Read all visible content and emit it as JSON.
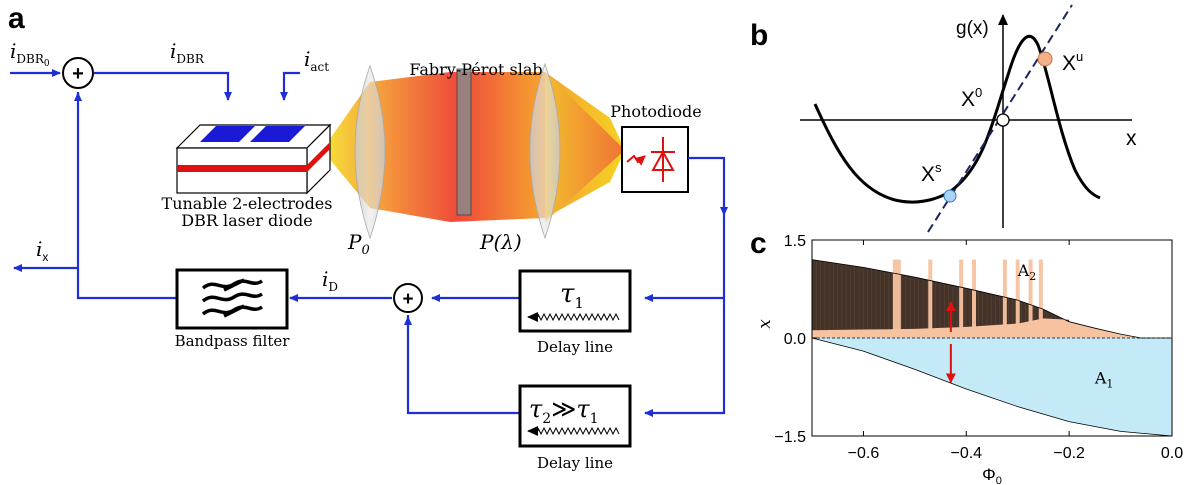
{
  "panels": {
    "a": "a",
    "b": "b",
    "c": "c"
  },
  "diagram_a": {
    "labels": {
      "i_dbr0": "i",
      "i_dbr0_sub": "DBR",
      "i_dbr0_subsub": "0",
      "i_dbr": "i",
      "i_dbr_sub": "DBR",
      "i_act": "i",
      "i_act_sub": "act",
      "fabry_perot": "Fabry-Pérot slab",
      "photodiode": "Photodiode",
      "laser_line1": "Tunable 2-electrodes",
      "laser_line2": "DBR laser diode",
      "p0": "P",
      "p0_sub": "0",
      "p_lambda": "P(λ)",
      "i_x": "i",
      "i_x_sub": "x",
      "i_d": "i",
      "i_d_sub": "D",
      "bandpass": "Bandpass filter",
      "tau1": "τ",
      "tau1_sub": "1",
      "tau2_a": "τ",
      "tau2_a_sub": "2",
      "tau2_rel": "≫",
      "tau2_b": "τ",
      "tau2_b_sub": "1",
      "delay1": "Delay line",
      "delay2": "Delay line",
      "plus": "+"
    },
    "colors": {
      "wire": "#1f2fd6",
      "electrode": "#1a1ad6",
      "laser_stripe": "#e01010",
      "photodiode_symbol": "#e01010",
      "beam_start": "#f5e020",
      "beam_mid": "#f06040",
      "beam_end": "#f5d020"
    }
  },
  "diagram_b": {
    "g_label": "g(x)",
    "x_axis": "x",
    "x0": "X",
    "x0_sup": "0",
    "xs": "X",
    "xs_sup": "s",
    "xu": "X",
    "xu_sup": "u",
    "colors": {
      "xs_point": "#a8d4f5",
      "xu_point": "#f5b08a"
    }
  },
  "chart_data": {
    "type": "area",
    "xlabel": "Φ",
    "xlabel_sub": "0",
    "ylabel": "x",
    "xlim": [
      -0.7,
      0.0
    ],
    "ylim": [
      -1.5,
      1.5
    ],
    "x_ticks": [
      "−0.6",
      "−0.4",
      "−0.2",
      "0.0"
    ],
    "y_ticks": [
      "−1.5",
      "0.0",
      "1.5"
    ],
    "x_tick_values": [
      -0.6,
      -0.4,
      -0.2,
      0.0
    ],
    "y_tick_values": [
      -1.5,
      0.0,
      1.5
    ],
    "regions": [
      {
        "name": "A",
        "sub": "2",
        "color": "#f7c2a0"
      },
      {
        "name": "A",
        "sub": "1",
        "color": "#c4eaf7"
      }
    ],
    "lower_boundary": {
      "x": [
        -0.7,
        -0.6,
        -0.5,
        -0.4,
        -0.3,
        -0.2,
        -0.1,
        0.0
      ],
      "y": [
        0.0,
        -0.2,
        -0.48,
        -0.78,
        -1.05,
        -1.28,
        -1.43,
        -1.5
      ]
    },
    "upper_boundary": {
      "x": [
        -0.7,
        -0.6,
        -0.5,
        -0.4,
        -0.3,
        -0.25,
        -0.2,
        -0.15,
        -0.1,
        -0.06,
        0.0
      ],
      "y": [
        1.2,
        1.08,
        0.93,
        0.76,
        0.58,
        0.44,
        0.25,
        0.15,
        0.06,
        0.0,
        0.0
      ]
    },
    "bifurcation_lower": {
      "x": [
        -0.7,
        -0.6,
        -0.5,
        -0.4,
        -0.3,
        -0.25,
        -0.2
      ],
      "y": [
        0.12,
        0.13,
        0.14,
        0.17,
        0.22,
        0.3,
        0.28
      ]
    },
    "stripes_x": [
      -0.535,
      -0.47,
      -0.41,
      -0.385,
      -0.325,
      -0.3,
      -0.275,
      -0.255
    ],
    "arrow_x": -0.43,
    "arrow_up": [
      0.0,
      0.55
    ],
    "arrow_down": [
      0.0,
      -0.68
    ],
    "colors": {
      "arrow": "#e01010",
      "chaos": "#2a1f18"
    }
  }
}
